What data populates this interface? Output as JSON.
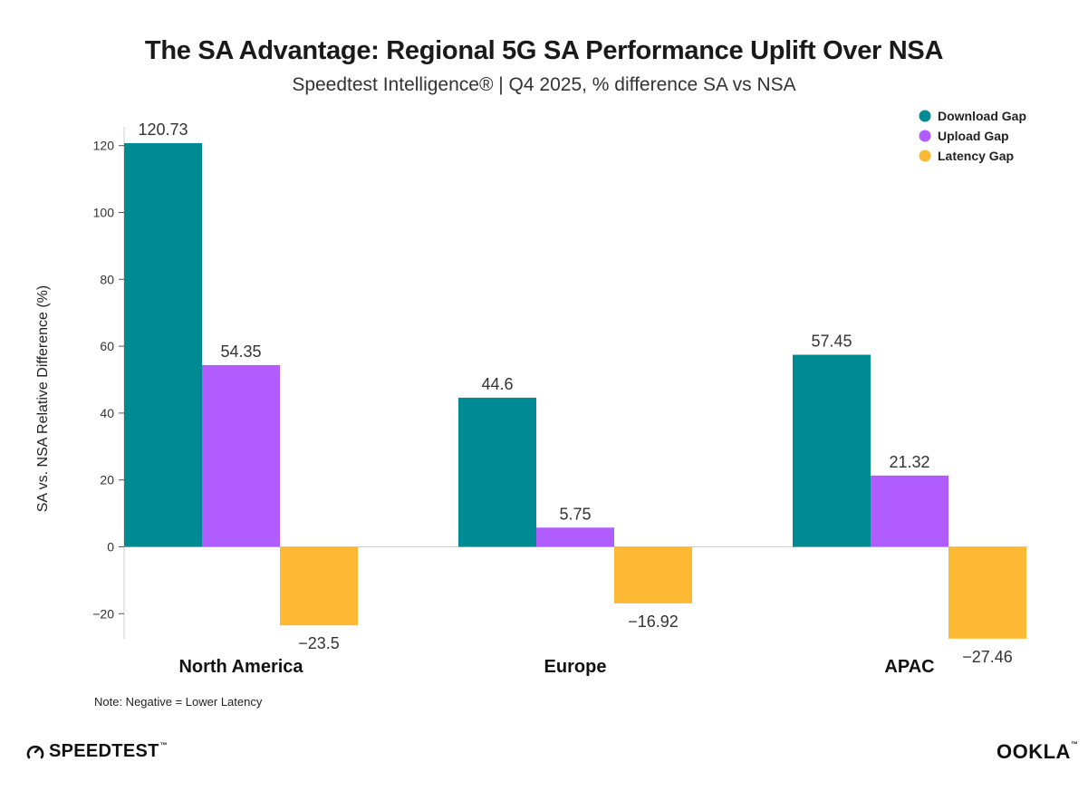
{
  "chart_data": {
    "type": "bar",
    "title": "The SA Advantage: Regional 5G SA Performance Uplift Over NSA",
    "subtitle": "Speedtest Intelligence® | Q4 2025, % difference SA vs NSA",
    "xlabel": "",
    "ylabel": "SA vs. NSA Relative Difference (%)",
    "categories": [
      "North America",
      "Europe",
      "APAC"
    ],
    "series": [
      {
        "name": "Download Gap",
        "color": "#008a94",
        "values": [
          120.73,
          44.6,
          57.45
        ],
        "labels": [
          "120.73",
          "44.6",
          "57.45"
        ]
      },
      {
        "name": "Upload Gap",
        "color": "#b05cff",
        "values": [
          54.35,
          5.75,
          21.32
        ],
        "labels": [
          "54.35",
          "5.75",
          "21.32"
        ]
      },
      {
        "name": "Latency Gap",
        "color": "#fdb933",
        "values": [
          -23.5,
          -16.92,
          -27.46
        ],
        "labels": [
          "−23.5",
          "−16.92",
          "−27.46"
        ]
      }
    ],
    "ylim": [
      -27.46,
      120.73
    ],
    "yticks": [
      -20,
      0,
      20,
      40,
      60,
      80,
      100,
      120
    ],
    "ytick_labels": [
      "−20",
      "0",
      "20",
      "40",
      "60",
      "80",
      "100",
      "120"
    ],
    "legend": "top-right",
    "grid": false
  },
  "note": "Note: Negative = Lower Latency",
  "brand": {
    "speedtest": "SPEEDTEST",
    "ookla": "OOKLA",
    "trademark": "™"
  }
}
